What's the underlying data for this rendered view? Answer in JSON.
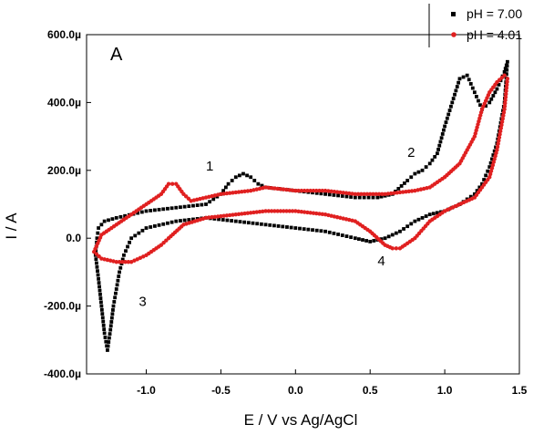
{
  "chart_data": {
    "type": "scatter",
    "title": "",
    "panel_label": "A",
    "xlabel": "E / V vs Ag/AgCl",
    "ylabel": "I / A",
    "xlim": [
      -1.4,
      1.5
    ],
    "ylim": [
      -0.0004,
      0.0006
    ],
    "x_ticks": [
      -1.0,
      -0.5,
      0.0,
      0.5,
      1.0,
      1.5
    ],
    "x_tick_labels": [
      "-1.0",
      "-0.5",
      "0.0",
      "0.5",
      "1.0",
      "1.5"
    ],
    "y_ticks": [
      -0.0004,
      -0.0002,
      0.0,
      0.0002,
      0.0004,
      0.0006
    ],
    "y_tick_labels": [
      "-400.0µ",
      "-200.0µ",
      "0.0",
      "200.0µ",
      "400.0µ",
      "600.0µ"
    ],
    "legend_position": "top-right",
    "annotations": [
      {
        "text": "1",
        "x": -0.6,
        "y": 0.0002
      },
      {
        "text": "2",
        "x": 0.75,
        "y": 0.00024
      },
      {
        "text": "3",
        "x": -1.05,
        "y": -0.0002
      },
      {
        "text": "4",
        "x": 0.55,
        "y": -8e-05
      }
    ],
    "series": [
      {
        "name": "pH = 7.00",
        "color": "#000000",
        "points": [
          [
            -1.33,
            0.0
          ],
          [
            -1.32,
            3e-05
          ],
          [
            -1.28,
            5e-05
          ],
          [
            -1.2,
            6e-05
          ],
          [
            -1.0,
            8e-05
          ],
          [
            -0.8,
            9e-05
          ],
          [
            -0.6,
            0.0001
          ],
          [
            -0.5,
            0.00013
          ],
          [
            -0.45,
            0.00016
          ],
          [
            -0.4,
            0.00018
          ],
          [
            -0.35,
            0.00019
          ],
          [
            -0.3,
            0.00018
          ],
          [
            -0.25,
            0.00016
          ],
          [
            -0.2,
            0.00015
          ],
          [
            0.0,
            0.00014
          ],
          [
            0.2,
            0.00013
          ],
          [
            0.4,
            0.00012
          ],
          [
            0.55,
            0.00012
          ],
          [
            0.65,
            0.00013
          ],
          [
            0.75,
            0.00017
          ],
          [
            0.8,
            0.00019
          ],
          [
            0.85,
            0.0002
          ],
          [
            0.9,
            0.00022
          ],
          [
            0.95,
            0.00025
          ],
          [
            1.0,
            0.00033
          ],
          [
            1.05,
            0.0004
          ],
          [
            1.1,
            0.00047
          ],
          [
            1.15,
            0.00048
          ],
          [
            1.2,
            0.00043
          ],
          [
            1.25,
            0.00038
          ],
          [
            1.3,
            0.0004
          ],
          [
            1.35,
            0.00044
          ],
          [
            1.4,
            0.00049
          ],
          [
            1.42,
            0.00052
          ],
          [
            1.4,
            0.0004
          ],
          [
            1.35,
            0.00028
          ],
          [
            1.3,
            0.00021
          ],
          [
            1.25,
            0.00016
          ],
          [
            1.2,
            0.00013
          ],
          [
            1.1,
            0.0001
          ],
          [
            1.0,
            8e-05
          ],
          [
            0.9,
            7e-05
          ],
          [
            0.8,
            5e-05
          ],
          [
            0.7,
            2e-05
          ],
          [
            0.6,
            0.0
          ],
          [
            0.5,
            -1e-05
          ],
          [
            0.4,
            0.0
          ],
          [
            0.2,
            2e-05
          ],
          [
            0.0,
            3e-05
          ],
          [
            -0.2,
            4e-05
          ],
          [
            -0.4,
            5e-05
          ],
          [
            -0.6,
            6e-05
          ],
          [
            -0.8,
            5e-05
          ],
          [
            -1.0,
            3e-05
          ],
          [
            -1.1,
            0.0
          ],
          [
            -1.15,
            -5e-05
          ],
          [
            -1.18,
            -0.0001
          ],
          [
            -1.2,
            -0.00015
          ],
          [
            -1.22,
            -0.0002
          ],
          [
            -1.24,
            -0.00027
          ],
          [
            -1.26,
            -0.00033
          ],
          [
            -1.28,
            -0.00028
          ],
          [
            -1.3,
            -0.0002
          ],
          [
            -1.32,
            -0.00012
          ],
          [
            -1.34,
            -5e-05
          ],
          [
            -1.33,
            0.0
          ]
        ]
      },
      {
        "name": "pH = 4.01",
        "color": "#e02020",
        "points": [
          [
            -1.35,
            -4e-05
          ],
          [
            -1.3,
            1e-05
          ],
          [
            -1.2,
            4e-05
          ],
          [
            -1.1,
            7e-05
          ],
          [
            -1.0,
            0.0001
          ],
          [
            -0.9,
            0.00013
          ],
          [
            -0.85,
            0.00016
          ],
          [
            -0.8,
            0.00016
          ],
          [
            -0.75,
            0.00013
          ],
          [
            -0.7,
            0.00011
          ],
          [
            -0.6,
            0.00012
          ],
          [
            -0.5,
            0.00013
          ],
          [
            -0.3,
            0.00014
          ],
          [
            -0.2,
            0.00015
          ],
          [
            0.0,
            0.00014
          ],
          [
            0.2,
            0.00014
          ],
          [
            0.4,
            0.00013
          ],
          [
            0.6,
            0.00013
          ],
          [
            0.8,
            0.00014
          ],
          [
            0.9,
            0.00015
          ],
          [
            1.0,
            0.00018
          ],
          [
            1.1,
            0.00022
          ],
          [
            1.2,
            0.0003
          ],
          [
            1.25,
            0.00038
          ],
          [
            1.3,
            0.00043
          ],
          [
            1.35,
            0.00046
          ],
          [
            1.4,
            0.00048
          ],
          [
            1.42,
            0.00047
          ],
          [
            1.4,
            0.00038
          ],
          [
            1.35,
            0.00026
          ],
          [
            1.3,
            0.00018
          ],
          [
            1.2,
            0.00012
          ],
          [
            1.0,
            8e-05
          ],
          [
            0.9,
            5e-05
          ],
          [
            0.8,
            0.0
          ],
          [
            0.7,
            -3e-05
          ],
          [
            0.65,
            -3e-05
          ],
          [
            0.6,
            -2e-05
          ],
          [
            0.5,
            2e-05
          ],
          [
            0.4,
            5e-05
          ],
          [
            0.2,
            7e-05
          ],
          [
            0.0,
            8e-05
          ],
          [
            -0.2,
            8e-05
          ],
          [
            -0.4,
            7e-05
          ],
          [
            -0.6,
            6e-05
          ],
          [
            -0.75,
            4e-05
          ],
          [
            -0.85,
            0.0
          ],
          [
            -0.9,
            -2e-05
          ],
          [
            -1.0,
            -5e-05
          ],
          [
            -1.1,
            -7e-05
          ],
          [
            -1.2,
            -7e-05
          ],
          [
            -1.3,
            -6e-05
          ],
          [
            -1.35,
            -4e-05
          ]
        ]
      }
    ]
  }
}
